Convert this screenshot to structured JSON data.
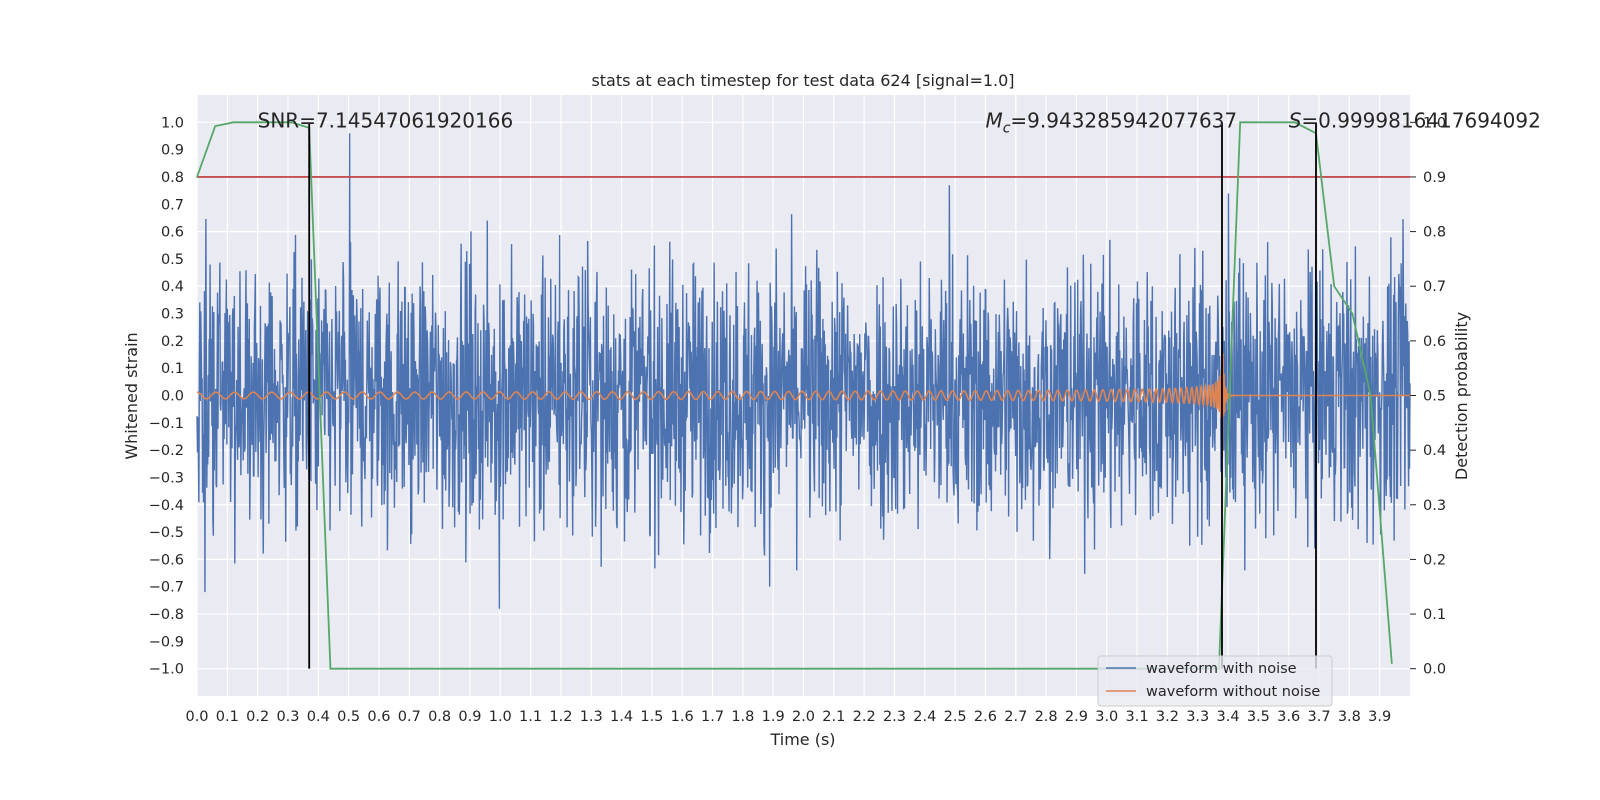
{
  "chart_data": {
    "type": "line",
    "title": "stats at each timestep for test data 624 [signal=1.0]",
    "xlabel": "Time (s)",
    "ylabel": "Whitened strain",
    "y2label": "Detection probability",
    "xlim": [
      0.0,
      4.0
    ],
    "ylim": [
      -1.1,
      1.1
    ],
    "y2lim": [
      -0.05,
      1.05
    ],
    "xticks": [
      "0.0",
      "0.1",
      "0.2",
      "0.3",
      "0.4",
      "0.5",
      "0.6",
      "0.7",
      "0.8",
      "0.9",
      "1.0",
      "1.1",
      "1.2",
      "1.3",
      "1.4",
      "1.5",
      "1.6",
      "1.7",
      "1.8",
      "1.9",
      "2.0",
      "2.1",
      "2.2",
      "2.3",
      "2.4",
      "2.5",
      "2.6",
      "2.7",
      "2.8",
      "2.9",
      "3.0",
      "3.1",
      "3.2",
      "3.3",
      "3.4",
      "3.5",
      "3.6",
      "3.7",
      "3.8",
      "3.9"
    ],
    "yticks": [
      "1.0",
      "0.9",
      "0.8",
      "0.7",
      "0.6",
      "0.5",
      "0.4",
      "0.3",
      "0.2",
      "0.1",
      "0.0",
      "−0.1",
      "−0.2",
      "−0.3",
      "−0.4",
      "−0.5",
      "−0.6",
      "−0.7",
      "−0.8",
      "−0.9",
      "−1.0"
    ],
    "y2ticks": [
      "0.0",
      "0.1",
      "0.2",
      "0.3",
      "0.4",
      "0.5",
      "0.6",
      "0.7",
      "0.8",
      "0.9",
      "1.0"
    ],
    "noise_amplitude": 0.45,
    "chirp": {
      "start_amp": 0.012,
      "peak_amp": 0.28,
      "start_freq_hz": 16,
      "merger_time": 3.38
    },
    "threshold": {
      "value": 0.9,
      "axis": "y2",
      "color": "#c44e52"
    },
    "markers": [
      0.37,
      3.38,
      3.69
    ],
    "detection_probability": {
      "x": [
        0.0,
        0.06,
        0.12,
        0.19,
        0.25,
        0.31,
        0.37,
        0.44,
        0.5,
        0.56,
        0.62,
        0.69,
        0.75,
        0.81,
        0.87,
        0.94,
        1.0,
        1.06,
        1.12,
        1.19,
        1.25,
        1.31,
        1.37,
        1.44,
        1.5,
        1.56,
        1.62,
        1.69,
        1.75,
        1.81,
        1.87,
        1.94,
        2.0,
        2.06,
        2.12,
        2.19,
        2.25,
        2.31,
        2.37,
        2.44,
        2.5,
        2.56,
        2.62,
        2.69,
        2.75,
        2.81,
        2.87,
        2.94,
        3.0,
        3.06,
        3.12,
        3.19,
        3.25,
        3.31,
        3.37,
        3.44,
        3.5,
        3.56,
        3.62,
        3.69,
        3.75,
        3.81,
        3.87,
        3.94
      ],
      "y": [
        0.9,
        0.993,
        1.0,
        1.0,
        1.0,
        1.0,
        0.99,
        0.0,
        0.0,
        0.0,
        0.0,
        0.0,
        0.0,
        0.0,
        0.0,
        0.0,
        0.0,
        0.0,
        0.0,
        0.0,
        0.0,
        0.0,
        0.0,
        0.0,
        0.0,
        0.0,
        0.0,
        0.0,
        0.0,
        0.0,
        0.0,
        0.0,
        0.0,
        0.0,
        0.0,
        0.0,
        0.0,
        0.0,
        0.0,
        0.0,
        0.0,
        0.0,
        0.0,
        0.0,
        0.0,
        0.0,
        0.0,
        0.0,
        0.0,
        0.0,
        0.0,
        0.0,
        0.0,
        0.0,
        0.0,
        1.0,
        1.0,
        1.0,
        1.0,
        0.98,
        0.7,
        0.65,
        0.5,
        0.01
      ]
    },
    "annotations": [
      {
        "text": "SNR=7.14547061920166",
        "x": 0.2,
        "y": 1.0
      },
      {
        "text": "=9.943285942077637",
        "math": "Mc",
        "x": 2.6,
        "y": 1.0
      },
      {
        "text": "=0.9999816417694092",
        "math": "S",
        "x": 3.6,
        "y": 1.0
      }
    ],
    "legend": [
      {
        "label": "waveform with noise",
        "color": "#4c72b0"
      },
      {
        "label": "waveform without noise",
        "color": "#dd8452"
      }
    ],
    "legend_position": "lower-right",
    "series_colors": {
      "noise": "#4c72b0",
      "clean": "#dd8452",
      "probability": "#55a868",
      "marker": "#000000"
    }
  }
}
